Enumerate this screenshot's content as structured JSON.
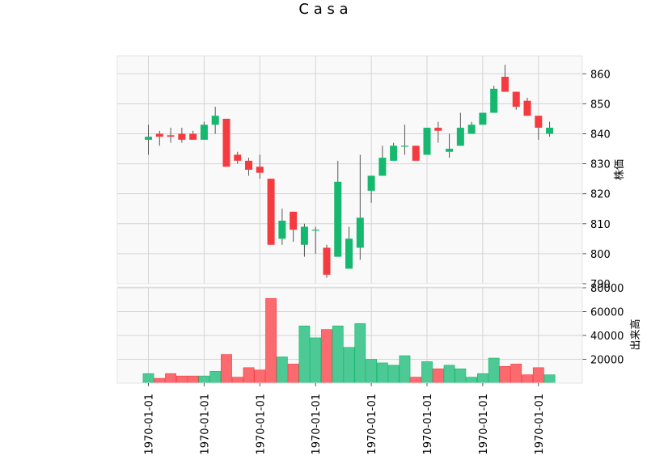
{
  "chart_data": {
    "type": "candlestick",
    "title": "C a s a",
    "price_axis_label": "株価",
    "volume_axis_label": "出来高",
    "price_ylim": [
      790,
      866
    ],
    "price_ticks": [
      790,
      800,
      810,
      820,
      830,
      840,
      850,
      860
    ],
    "volume_ylim": [
      0,
      80000
    ],
    "volume_ticks": [
      20000,
      40000,
      60000,
      80000
    ],
    "x_tick_label": "1970-01-01",
    "x_tick_positions": [
      0,
      5,
      10,
      15,
      20,
      25,
      30,
      35
    ],
    "up_color": "#14b86e",
    "down_color": "#f53b40",
    "up_volume_color": "#4cc994",
    "down_volume_color": "#fa6a6e",
    "grid": true,
    "candles": [
      {
        "open": 838,
        "high": 843,
        "low": 833,
        "close": 839,
        "volume": 8000
      },
      {
        "open": 840,
        "high": 841,
        "low": 836,
        "close": 839,
        "volume": 4000
      },
      {
        "open": 839.5,
        "high": 842,
        "low": 837,
        "close": 839,
        "volume": 8000
      },
      {
        "open": 840,
        "high": 842,
        "low": 837,
        "close": 838,
        "volume": 6000
      },
      {
        "open": 840,
        "high": 841,
        "low": 838,
        "close": 838,
        "volume": 6000
      },
      {
        "open": 838,
        "high": 844,
        "low": 838,
        "close": 843,
        "volume": 6000
      },
      {
        "open": 843,
        "high": 849,
        "low": 840,
        "close": 846,
        "volume": 10000
      },
      {
        "open": 845,
        "high": 845,
        "low": 829,
        "close": 829,
        "volume": 24000
      },
      {
        "open": 833,
        "high": 834,
        "low": 830,
        "close": 831,
        "volume": 5000
      },
      {
        "open": 831,
        "high": 832,
        "low": 826,
        "close": 828,
        "volume": 13000
      },
      {
        "open": 829,
        "high": 833,
        "low": 825,
        "close": 827,
        "volume": 11000
      },
      {
        "open": 825,
        "high": 825,
        "low": 803,
        "close": 803,
        "volume": 71000
      },
      {
        "open": 805,
        "high": 815,
        "low": 803,
        "close": 811,
        "volume": 22000
      },
      {
        "open": 814,
        "high": 814,
        "low": 804,
        "close": 808,
        "volume": 16000
      },
      {
        "open": 803,
        "high": 810,
        "low": 799,
        "close": 809,
        "volume": 48000
      },
      {
        "open": 808,
        "high": 809,
        "low": 800,
        "close": 808,
        "volume": 38000
      },
      {
        "open": 802,
        "high": 803,
        "low": 792,
        "close": 793,
        "volume": 45000
      },
      {
        "open": 799,
        "high": 831,
        "low": 799,
        "close": 824,
        "volume": 48000
      },
      {
        "open": 795,
        "high": 809,
        "low": 795,
        "close": 805,
        "volume": 30000
      },
      {
        "open": 802,
        "high": 833,
        "low": 798,
        "close": 812,
        "volume": 50000
      },
      {
        "open": 821,
        "high": 826,
        "low": 817,
        "close": 826,
        "volume": 20000
      },
      {
        "open": 826,
        "high": 836,
        "low": 826,
        "close": 832,
        "volume": 17000
      },
      {
        "open": 831,
        "high": 837,
        "low": 831,
        "close": 836,
        "volume": 15000
      },
      {
        "open": 836,
        "high": 843,
        "low": 833,
        "close": 836,
        "volume": 23000
      },
      {
        "open": 836,
        "high": 836,
        "low": 831,
        "close": 831,
        "volume": 5000
      },
      {
        "open": 833,
        "high": 842,
        "low": 833,
        "close": 842,
        "volume": 18000
      },
      {
        "open": 842,
        "high": 844,
        "low": 837,
        "close": 841,
        "volume": 12000
      },
      {
        "open": 834,
        "high": 840,
        "low": 832,
        "close": 835,
        "volume": 15000
      },
      {
        "open": 836,
        "high": 847,
        "low": 836,
        "close": 842,
        "volume": 12000
      },
      {
        "open": 840,
        "high": 844,
        "low": 840,
        "close": 843,
        "volume": 5000
      },
      {
        "open": 843,
        "high": 847,
        "low": 843,
        "close": 847,
        "volume": 8000
      },
      {
        "open": 847,
        "high": 856,
        "low": 847,
        "close": 855,
        "volume": 21000
      },
      {
        "open": 859,
        "high": 863,
        "low": 854,
        "close": 854,
        "volume": 14000
      },
      {
        "open": 854,
        "high": 854,
        "low": 848,
        "close": 849,
        "volume": 16000
      },
      {
        "open": 851,
        "high": 852,
        "low": 846,
        "close": 846,
        "volume": 7000
      },
      {
        "open": 846,
        "high": 846,
        "low": 838,
        "close": 842,
        "volume": 13000
      },
      {
        "open": 840,
        "high": 844,
        "low": 839,
        "close": 842,
        "volume": 7000
      }
    ]
  }
}
